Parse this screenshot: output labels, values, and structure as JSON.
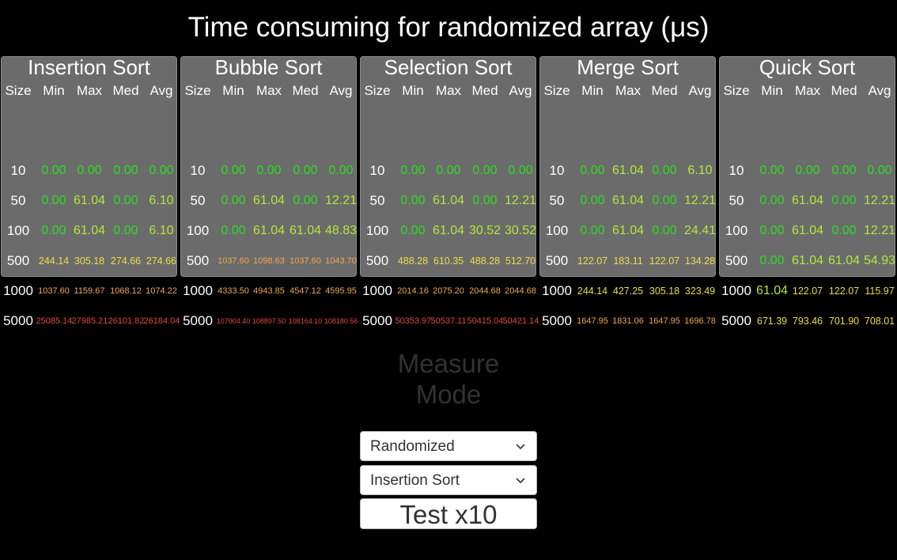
{
  "title": "Time consuming for randomized array (μs)",
  "columns": [
    "Size",
    "Min",
    "Max",
    "Med",
    "Avg"
  ],
  "sizes": [
    "10",
    "50",
    "100",
    "500",
    "1000",
    "5000"
  ],
  "panels": [
    {
      "name": "Insertion Sort",
      "rows": [
        [
          "0.00",
          "0.00",
          "0.00",
          "0.00"
        ],
        [
          "0.00",
          "61.04",
          "0.00",
          "6.10"
        ],
        [
          "0.00",
          "61.04",
          "0.00",
          "6.10"
        ],
        [
          "244.14",
          "305.18",
          "274.66",
          "274.66"
        ],
        [
          "1037.60",
          "1159.67",
          "1068.12",
          "1074.22"
        ],
        [
          "25085.14",
          "27985.21",
          "26101.82",
          "26184.04"
        ]
      ]
    },
    {
      "name": "Bubble Sort",
      "rows": [
        [
          "0.00",
          "0.00",
          "0.00",
          "0.00"
        ],
        [
          "0.00",
          "61.04",
          "0.00",
          "12.21"
        ],
        [
          "0.00",
          "61.04",
          "61.04",
          "48.83"
        ],
        [
          "1037.60",
          "1098.63",
          "1037.60",
          "1043.70"
        ],
        [
          "4333.50",
          "4943.85",
          "4547.12",
          "4595.95"
        ],
        [
          "107004.40",
          "108897.50",
          "108164.10",
          "108180.56"
        ]
      ]
    },
    {
      "name": "Selection Sort",
      "rows": [
        [
          "0.00",
          "0.00",
          "0.00",
          "0.00"
        ],
        [
          "0.00",
          "61.04",
          "0.00",
          "12.21"
        ],
        [
          "0.00",
          "61.04",
          "30.52",
          "30.52"
        ],
        [
          "488.28",
          "610.35",
          "488.28",
          "512.70"
        ],
        [
          "2014.16",
          "2075.20",
          "2044.68",
          "2044.68"
        ],
        [
          "50353.97",
          "50537.11",
          "50415.04",
          "50421.14"
        ]
      ]
    },
    {
      "name": "Merge Sort",
      "rows": [
        [
          "0.00",
          "61.04",
          "0.00",
          "6.10"
        ],
        [
          "0.00",
          "61.04",
          "0.00",
          "12.21"
        ],
        [
          "0.00",
          "61.04",
          "0.00",
          "24.41"
        ],
        [
          "122.07",
          "183.11",
          "122.07",
          "134.28"
        ],
        [
          "244.14",
          "427.25",
          "305.18",
          "323.49"
        ],
        [
          "1647.95",
          "1831.06",
          "1647.95",
          "1696.78"
        ]
      ]
    },
    {
      "name": "Quick Sort",
      "rows": [
        [
          "0.00",
          "0.00",
          "0.00",
          "0.00"
        ],
        [
          "0.00",
          "61.04",
          "0.00",
          "12.21"
        ],
        [
          "0.00",
          "61.04",
          "0.00",
          "12.21"
        ],
        [
          "0.00",
          "61.04",
          "61.04",
          "54.93"
        ],
        [
          "61.04",
          "122.07",
          "122.07",
          "115.97"
        ],
        [
          "671.39",
          "793.46",
          "701.90",
          "708.01"
        ]
      ]
    }
  ],
  "colors": {
    "green": "#2ddc22",
    "lime": "#b4e83a",
    "yellow": "#f0dc46",
    "orange": "#f0a850",
    "red": "#e04a3a"
  },
  "controls": {
    "mode_label": "Measure Mode",
    "array_dropdown": {
      "selected": "Randomized",
      "icon": "chevron-down-icon"
    },
    "algorithm_dropdown": {
      "selected": "Insertion Sort",
      "icon": "chevron-down-icon"
    },
    "test_button_label": "Test x10"
  }
}
